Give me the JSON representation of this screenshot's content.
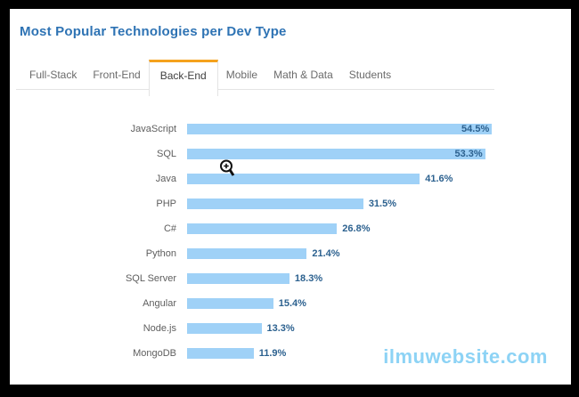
{
  "header": {
    "title": "Most Popular Technologies per Dev Type"
  },
  "tabs": [
    {
      "label": "Full-Stack",
      "active": false
    },
    {
      "label": "Front-End",
      "active": false
    },
    {
      "label": "Back-End",
      "active": true
    },
    {
      "label": "Mobile",
      "active": false
    },
    {
      "label": "Math & Data",
      "active": false
    },
    {
      "label": "Students",
      "active": false
    }
  ],
  "chart_data": {
    "type": "bar",
    "orientation": "horizontal",
    "title": "Most Popular Technologies per Dev Type",
    "active_series": "Back-End",
    "categories": [
      "JavaScript",
      "SQL",
      "Java",
      "PHP",
      "C#",
      "Python",
      "SQL Server",
      "Angular",
      "Node.js",
      "MongoDB"
    ],
    "values": [
      54.5,
      53.3,
      41.6,
      31.5,
      26.8,
      21.4,
      18.3,
      15.4,
      13.3,
      11.9
    ],
    "value_labels": [
      "54.5%",
      "53.3%",
      "41.6%",
      "31.5%",
      "26.8%",
      "21.4%",
      "18.3%",
      "15.4%",
      "13.3%",
      "11.9%"
    ],
    "unit": "%",
    "xlim": [
      0,
      57
    ],
    "grid": false,
    "legend": false,
    "bar_color": "#9fd1f7",
    "value_label_color": "#2c618f"
  },
  "colors": {
    "title_blue": "#2e73b4",
    "tab_accent_orange": "#f5a21d",
    "bar_blue": "#9fd1f7",
    "watermark_blue": "#8dd3f5",
    "frame_black": "#000000"
  },
  "watermark": {
    "text": "ilmuwebsite.com"
  }
}
